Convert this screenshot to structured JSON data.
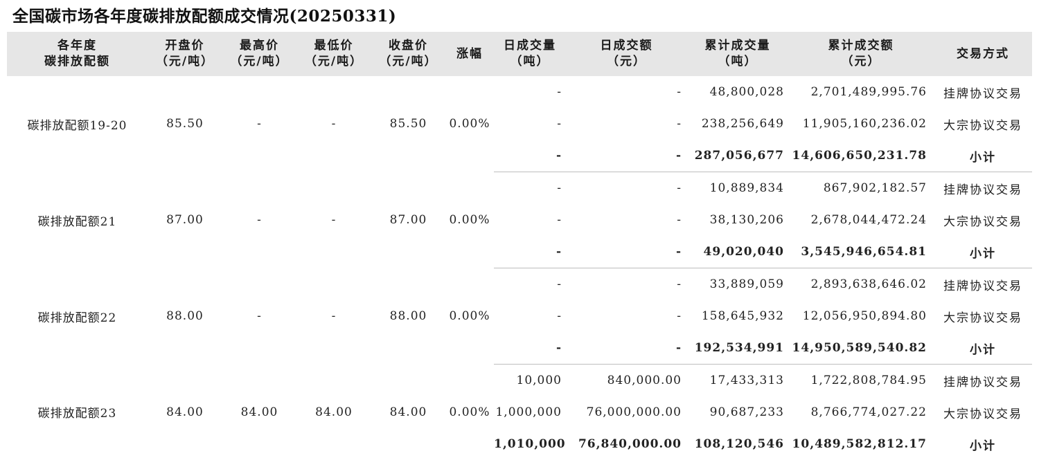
{
  "title": "全国碳市场各年度碳排放配额成交情况(20250331)",
  "headers": [
    [
      "各年度",
      "碳排放配额"
    ],
    [
      "开盘价",
      "（元/吨）"
    ],
    [
      "最高价",
      "（元/吨）"
    ],
    [
      "最低价",
      "（元/吨）"
    ],
    [
      "收盘价",
      "（元/吨）"
    ],
    [
      "涨幅",
      ""
    ],
    [
      "日成交量",
      "（吨）"
    ],
    [
      "日成交额",
      "（元）"
    ],
    [
      "累计成交量",
      "（吨）"
    ],
    [
      "累计成交额",
      "（元）"
    ],
    [
      "交易方式",
      ""
    ]
  ],
  "groups": [
    {
      "name": "碳排放配额19-20",
      "open": "85.50",
      "high": "-",
      "low": "-",
      "close": "85.50",
      "change": "0.00%",
      "rows": [
        {
          "daily_vol": "-",
          "daily_amt": "-",
          "cum_vol": "48,800,028",
          "cum_amt": "2,701,489,995.76",
          "method": "挂牌协议交易"
        },
        {
          "daily_vol": "-",
          "daily_amt": "-",
          "cum_vol": "238,256,649",
          "cum_amt": "11,905,160,236.02",
          "method": "大宗协议交易"
        },
        {
          "daily_vol": "-",
          "daily_amt": "-",
          "cum_vol": "287,056,677",
          "cum_amt": "14,606,650,231.78",
          "method": "小计"
        }
      ]
    },
    {
      "name": "碳排放配额21",
      "open": "87.00",
      "high": "-",
      "low": "-",
      "close": "87.00",
      "change": "0.00%",
      "rows": [
        {
          "daily_vol": "-",
          "daily_amt": "-",
          "cum_vol": "10,889,834",
          "cum_amt": "867,902,182.57",
          "method": "挂牌协议交易"
        },
        {
          "daily_vol": "-",
          "daily_amt": "-",
          "cum_vol": "38,130,206",
          "cum_amt": "2,678,044,472.24",
          "method": "大宗协议交易"
        },
        {
          "daily_vol": "-",
          "daily_amt": "-",
          "cum_vol": "49,020,040",
          "cum_amt": "3,545,946,654.81",
          "method": "小计"
        }
      ]
    },
    {
      "name": "碳排放配额22",
      "open": "88.00",
      "high": "-",
      "low": "-",
      "close": "88.00",
      "change": "0.00%",
      "rows": [
        {
          "daily_vol": "-",
          "daily_amt": "-",
          "cum_vol": "33,889,059",
          "cum_amt": "2,893,638,646.02",
          "method": "挂牌协议交易"
        },
        {
          "daily_vol": "-",
          "daily_amt": "-",
          "cum_vol": "158,645,932",
          "cum_amt": "12,056,950,894.80",
          "method": "大宗协议交易"
        },
        {
          "daily_vol": "-",
          "daily_amt": "-",
          "cum_vol": "192,534,991",
          "cum_amt": "14,950,589,540.82",
          "method": "小计"
        }
      ]
    },
    {
      "name": "碳排放配额23",
      "open": "84.00",
      "high": "84.00",
      "low": "84.00",
      "close": "84.00",
      "change": "0.00%",
      "rows": [
        {
          "daily_vol": "10,000",
          "daily_amt": "840,000.00",
          "cum_vol": "17,433,313",
          "cum_amt": "1,722,808,784.95",
          "method": "挂牌协议交易"
        },
        {
          "daily_vol": "1,000,000",
          "daily_amt": "76,000,000.00",
          "cum_vol": "90,687,233",
          "cum_amt": "8,766,774,027.22",
          "method": "大宗协议交易"
        },
        {
          "daily_vol": "1,010,000",
          "daily_amt": "76,840,000.00",
          "cum_vol": "108,120,546",
          "cum_amt": "10,489,582,812.17",
          "method": "小计"
        }
      ]
    }
  ]
}
